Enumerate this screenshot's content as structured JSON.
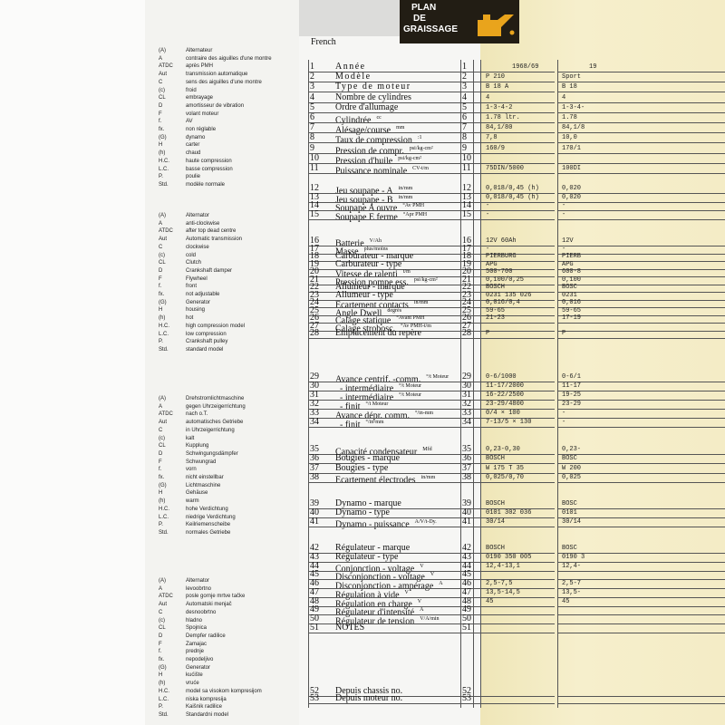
{
  "logo": [
    "PLAN",
    "DE",
    "GRAISSAGE"
  ],
  "language": "French",
  "glossaries": [
    [
      [
        "(A)",
        "Alternateur"
      ],
      [
        "A",
        "contraire des aiguilles d'une montre"
      ],
      [
        "ATDC",
        "après PMH"
      ],
      [
        "Aut",
        "transmission automatique"
      ],
      [
        "C",
        "sens des aiguilles d'une montre"
      ],
      [
        "(c)",
        "froid"
      ],
      [
        "CL",
        "embrayage"
      ],
      [
        "D",
        "amortisseur de vibration"
      ],
      [
        "F",
        "volant moteur"
      ],
      [
        "f.",
        "AV"
      ],
      [
        "fx.",
        "non réglable"
      ],
      [
        "(G)",
        "dynamo"
      ],
      [
        "H",
        "carter"
      ],
      [
        "(h)",
        "chaud"
      ],
      [
        "H.C.",
        "haute compression"
      ],
      [
        "L.C.",
        "basse compression"
      ],
      [
        "P.",
        "poulie"
      ],
      [
        "Std.",
        "modèle normale"
      ]
    ],
    [
      [
        "(A)",
        "Alternator"
      ],
      [
        "A",
        "anti-clockwise"
      ],
      [
        "ATDC",
        "after top dead centre"
      ],
      [
        "Aut",
        "Automatic transmission"
      ],
      [
        "C",
        "clockwise"
      ],
      [
        "(c)",
        "cold"
      ],
      [
        "CL",
        "Clutch"
      ],
      [
        "D",
        "Crankshaft damper"
      ],
      [
        "F",
        "Flywheel"
      ],
      [
        "f.",
        "front"
      ],
      [
        "fx.",
        "not adjustable"
      ],
      [
        "(G)",
        "Generator"
      ],
      [
        "H",
        "housing"
      ],
      [
        "(h)",
        "hot"
      ],
      [
        "H.C.",
        "high compression model"
      ],
      [
        "L.C.",
        "low compression"
      ],
      [
        "P.",
        "Crankshaft pulley"
      ],
      [
        "Std.",
        "standard model"
      ]
    ],
    [
      [
        "(A)",
        "Drehstromlichtmaschine"
      ],
      [
        "A",
        "gegen Uhrzeigerrichtung"
      ],
      [
        "ATDC",
        "nach o.T."
      ],
      [
        "Aut",
        "automatisches Getriebe"
      ],
      [
        "C",
        "in Uhrzeigerrichtung"
      ],
      [
        "(c)",
        "kalt"
      ],
      [
        "CL",
        "Kupplung"
      ],
      [
        "D",
        "Schwingungsdämpfer"
      ],
      [
        "F",
        "Schwungrad"
      ],
      [
        "f.",
        "vorn"
      ],
      [
        "fx.",
        "nicht einstellbar"
      ],
      [
        "(G)",
        "Lichtmaschine"
      ],
      [
        "H",
        "Gehäuse"
      ],
      [
        "(h)",
        "warm"
      ],
      [
        "H.C.",
        "hohe Verdichtung"
      ],
      [
        "L.C.",
        "niedrige Verdichtung"
      ],
      [
        "P.",
        "Keilriemenscheibe"
      ],
      [
        "Std.",
        "normales Getriebe"
      ]
    ],
    [
      [
        "(A)",
        "Alternator"
      ],
      [
        "A",
        "levoobrtno"
      ],
      [
        "ATDC",
        "posle gornje mrtve tačke"
      ],
      [
        "Aut",
        "Automatski menjač"
      ],
      [
        "C",
        "desnoobrtno"
      ],
      [
        "(c)",
        "hladno"
      ],
      [
        "CL",
        "Spojnica"
      ],
      [
        "D",
        "Dempfer radilice"
      ],
      [
        "F",
        "Zamajac"
      ],
      [
        "f.",
        "prednje"
      ],
      [
        "fx.",
        "nepodeljivo"
      ],
      [
        "(G)",
        "Generator"
      ],
      [
        "H",
        "kućište"
      ],
      [
        "(h)",
        "vruće"
      ],
      [
        "H.C.",
        "model sa visokom kompresijom"
      ],
      [
        "L.C.",
        "niska kompresija"
      ],
      [
        "P.",
        "Kaišnik radilice"
      ],
      [
        "Std.",
        "Standardni model"
      ]
    ]
  ],
  "rows": [
    {
      "num": "1",
      "label": "Année",
      "unit": null
    },
    {
      "num": "2",
      "label": "Modèle",
      "unit": null
    },
    {
      "num": "3",
      "label": "Type de moteur",
      "unit": null
    },
    {
      "num": "4",
      "label": "Nombre de cylindres",
      "unit": null
    },
    {
      "num": "5",
      "label": "Ordre d'allumage",
      "unit": null
    },
    {
      "num": "6",
      "label": "Cylindrée",
      "unit": "cc"
    },
    {
      "num": "7",
      "label": "Alésage/course",
      "unit": "mm"
    },
    {
      "num": "8",
      "label": "Taux de compression",
      "unit": ":1"
    },
    {
      "num": "9",
      "label": "Pression de compr.",
      "unit": "psi/kg-cm²"
    },
    {
      "num": "10",
      "label": "Pression d'huile",
      "unit": "psi/kg-cm²"
    },
    {
      "num": "11",
      "label": "Puissance nominale",
      "unit": "CV-t/m"
    },
    {
      "num": "12",
      "label": "Jeu soupape - A",
      "unit": "in/mm"
    },
    {
      "num": "13",
      "label": "Jeu soupape - B",
      "unit": "in/mm"
    },
    {
      "num": "14",
      "label": "Soupape A ouvre",
      "unit": "°Av PMH"
    },
    {
      "num": "15",
      "label": "Soupape E ferme",
      "unit": "°Apr PMH"
    },
    {
      "num": "16",
      "label": "Batterie",
      "unit": "V/Ah"
    },
    {
      "num": "17",
      "label": "Masse",
      "unit": "plus/moins"
    },
    {
      "num": "18",
      "label": "Carburateur - marque",
      "unit": null
    },
    {
      "num": "19",
      "label": "Carburateur - type",
      "unit": null
    },
    {
      "num": "20",
      "label": "Vitesse de ralenti",
      "unit": "t/m"
    },
    {
      "num": "21",
      "label": "Pression pompe ess.",
      "unit": "psi/kg-cm²"
    },
    {
      "num": "22",
      "label": "Allumeur - marque",
      "unit": null
    },
    {
      "num": "23",
      "label": "Allumeur - type",
      "unit": null
    },
    {
      "num": "24",
      "label": "Ecartement contacts",
      "unit": "in/mm"
    },
    {
      "num": "25",
      "label": "Angle Dwell",
      "unit": "degrés"
    },
    {
      "num": "26",
      "label": "Calage statique",
      "unit": "°Avant PMH"
    },
    {
      "num": "27",
      "label": "Calage strobosc.",
      "unit": "°Av PMH-t/m"
    },
    {
      "num": "28",
      "label": "Emplacement du repère",
      "unit": null
    },
    {
      "num": "29",
      "label": "Avance centrif. -comm.",
      "unit": "°/t Moteur"
    },
    {
      "num": "30",
      "label": "- intermédiaire",
      "unit": "°/t Moteur"
    },
    {
      "num": "31",
      "label": "- intermédiaire",
      "unit": "°/t Moteur"
    },
    {
      "num": "32",
      "label": "- finit",
      "unit": "°/t Moteur"
    },
    {
      "num": "33",
      "label": "Avance dépr. comm.",
      "unit": "°/in-mm"
    },
    {
      "num": "34",
      "label": "- finit",
      "unit": "°/in-mm"
    },
    {
      "num": "35",
      "label": "Capacité condensateur",
      "unit": "Mfd"
    },
    {
      "num": "36",
      "label": "Bougies - marque",
      "unit": null
    },
    {
      "num": "37",
      "label": "Bougies - type",
      "unit": null
    },
    {
      "num": "38",
      "label": "Ecartement électrodes",
      "unit": "in/mm"
    },
    {
      "num": "39",
      "label": "Dynamo - marque",
      "unit": null
    },
    {
      "num": "40",
      "label": "Dynamo - type",
      "unit": null
    },
    {
      "num": "41",
      "label": "Dynamo - puissance",
      "unit": "A/V/t-Dy."
    },
    {
      "num": "42",
      "label": "Régulateur - marque",
      "unit": null
    },
    {
      "num": "43",
      "label": "Régulateur - type",
      "unit": null
    },
    {
      "num": "44",
      "label": "Conjonction - voltage",
      "unit": "V"
    },
    {
      "num": "45",
      "label": "Disconjonction - voltage",
      "unit": "V"
    },
    {
      "num": "46",
      "label": "Disconjonction - ampérage",
      "unit": "A"
    },
    {
      "num": "47",
      "label": "Régulation à vide",
      "unit": "V"
    },
    {
      "num": "48",
      "label": "Régulation en charge",
      "unit": "V"
    },
    {
      "num": "49",
      "label": "Régulateur d'intensité",
      "unit": "A"
    },
    {
      "num": "50",
      "label": "Régulateur de tension",
      "unit": "V/A/min"
    },
    {
      "num": "51",
      "label": "NOTES",
      "unit": null
    },
    {
      "num": "52",
      "label": "Depuis chassis no.",
      "unit": null
    },
    {
      "num": "53",
      "label": "Depuis moteur no.",
      "unit": null
    }
  ],
  "columns": [
    [
      "1968/69",
      "P 210",
      "B 18 A",
      "4",
      "1-3-4-2",
      "1.78 ltr.",
      "84,1/80",
      "7,8",
      "160/9",
      null,
      "75DIN/5000",
      "0,018/0,45 (h)",
      "0,018/0,45 (h)",
      "-",
      "-",
      "12V 60Ah",
      "-",
      "PIERBURG",
      "APG",
      "500-700",
      "0,100/0,25",
      "BOSCH",
      "0231 135 026",
      "0,016/0,4",
      "59-65",
      "21-23",
      null,
      "P",
      "0-6/1000",
      "11-17/2000",
      "16-22/2500",
      "23-29/4800",
      "0/4 × 100",
      "7-13/5 × 130",
      "0,23-0,30",
      "BOSCH",
      "W 175 T 35",
      "0,025/0,70",
      "BOSCH",
      "0101 302 036",
      "30/14",
      "BOSCH",
      "0190 350 005",
      "12,4-13,1",
      null,
      "2,5-7,5",
      "13,5-14,5",
      "45",
      null,
      null,
      null,
      null,
      null
    ],
    [
      "19",
      "Sport",
      "B 18",
      "4",
      "1-3-4-",
      "1.78",
      "84,1/8",
      "10,0",
      "170/1",
      null,
      "100DI",
      "0,020",
      "0,020",
      "-",
      "-",
      "12V",
      "-",
      "PIERB",
      "APG",
      "600-8",
      "0,100",
      "BOSC",
      "0231",
      "0,016",
      "59-65",
      "17-19",
      null,
      "P",
      "0-6/1",
      "11-17",
      "19-25",
      "23-29",
      "-",
      "-",
      "0,23-",
      "BOSC",
      "W 200",
      "0,025",
      "BOSC",
      "0101",
      "30/14",
      "BOSC",
      "0190 3",
      "12,4-",
      null,
      "2,5-7",
      "13,5-",
      "45",
      null,
      null,
      null,
      null,
      null
    ]
  ]
}
